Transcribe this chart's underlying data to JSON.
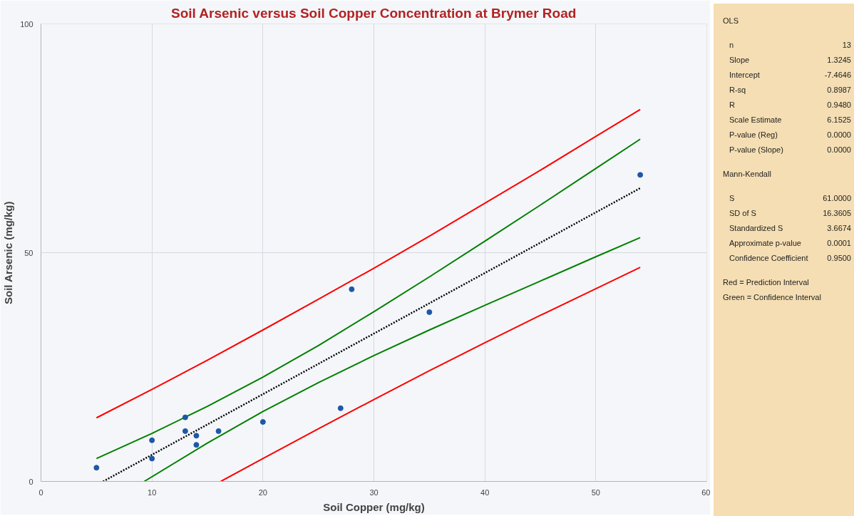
{
  "chart_data": {
    "type": "scatter",
    "title": "Soil Arsenic versus Soil Copper Concentration at Brymer Road",
    "xlabel": "Soil Copper (mg/kg)",
    "ylabel": "Soil Arsenic (mg/kg)",
    "xlim": [
      0,
      60
    ],
    "ylim": [
      0,
      100
    ],
    "xticks": [
      0,
      10,
      20,
      30,
      40,
      50,
      60
    ],
    "yticks": [
      0,
      50,
      100
    ],
    "grid": true,
    "series": [
      {
        "type": "line",
        "color": "#ff0000",
        "line_style": "solid",
        "x": [
          5,
          10,
          15,
          20,
          25,
          30,
          35,
          40,
          45,
          50,
          54
        ],
        "values": [
          13.9,
          20.1,
          26.5,
          33.1,
          39.8,
          46.6,
          53.6,
          60.8,
          68.0,
          75.4,
          81.3
        ]
      },
      {
        "type": "line",
        "color": "#ff0000",
        "line_style": "solid",
        "x": [
          16.2,
          20,
          25,
          30,
          35,
          40,
          45,
          50,
          54
        ],
        "values": [
          0,
          5.0,
          11.5,
          17.9,
          24.2,
          30.3,
          36.3,
          42.1,
          46.8
        ]
      },
      {
        "type": "line",
        "color": "#008000",
        "line_style": "solid",
        "x": [
          5,
          10,
          15,
          20,
          25,
          30,
          35,
          40,
          45,
          50,
          54
        ],
        "values": [
          5.0,
          10.5,
          16.4,
          22.8,
          29.7,
          37.1,
          44.7,
          52.5,
          60.4,
          68.4,
          74.8
        ]
      },
      {
        "type": "line",
        "color": "#008000",
        "line_style": "solid",
        "x": [
          9.3,
          15,
          20,
          25,
          30,
          35,
          40,
          45,
          50,
          54
        ],
        "values": [
          0,
          8.4,
          15.3,
          21.6,
          27.5,
          33.1,
          38.5,
          43.8,
          49.1,
          53.3
        ]
      },
      {
        "type": "line",
        "color": "#000000",
        "line_style": "dotted",
        "x": [
          5.6,
          54
        ],
        "values": [
          0,
          64.1
        ]
      },
      {
        "marker": "circle",
        "color": "#1f56a8",
        "x": [
          5,
          10,
          10,
          13,
          13,
          14,
          14,
          16,
          20,
          27,
          28,
          35,
          54
        ],
        "values": [
          3,
          9,
          5,
          14,
          11,
          10,
          8,
          11,
          13,
          16,
          42,
          37,
          67
        ]
      }
    ],
    "annotations": [
      "OLS",
      "n\t13",
      "Slope\t1.3245",
      "Intercept\t-7.4646",
      "R-sq\t0.8987",
      "R\t0.9480",
      "Scale Estimate\t6.1525",
      "P-value (Reg)\t0.0000",
      "P-value (Slope)\t0.0000",
      "Mann-Kendall",
      "S\t61.0000",
      "SD of S\t16.3605",
      "Standardized S\t3.6674",
      "Approximate p-value\t0.0001",
      "Confidence Coefficient\t0.9500",
      "Red = Prediction Interval",
      "Green = Confidence Interval"
    ]
  }
}
